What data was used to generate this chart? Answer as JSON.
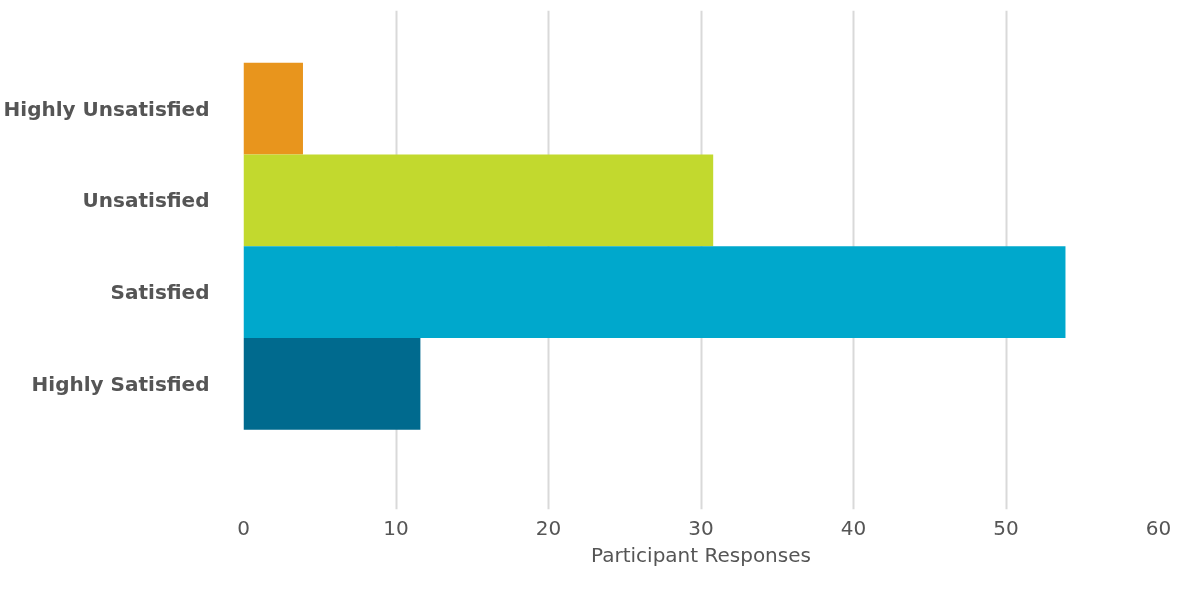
{
  "chart_data": {
    "type": "bar",
    "orientation": "horizontal",
    "xlabel": "Participant Responses",
    "categories": [
      "Highly Unsatisfied",
      "Unsatisfied",
      "Satisfied",
      "Highly Satisfied"
    ],
    "values": [
      3.9,
      30.8,
      53.9,
      11.6
    ],
    "colors": [
      "#e8951d",
      "#c2d92e",
      "#00a8cc",
      "#006a8e"
    ],
    "xlim": [
      0,
      60
    ],
    "xticks": [
      0,
      10,
      20,
      30,
      40,
      50,
      60
    ],
    "grid": "x"
  }
}
